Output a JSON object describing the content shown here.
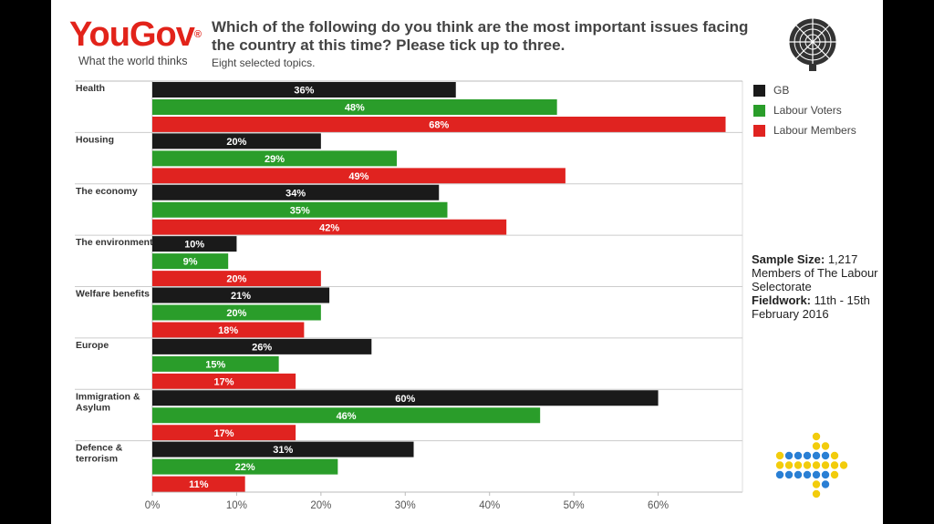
{
  "brand": {
    "logo_you": "You",
    "logo_gov": "Gov",
    "logo_reg": "®",
    "tagline": "What the world thinks"
  },
  "header": {
    "title": "Which of the following do you think are the most important issues facing the country at this time? Please tick up to three.",
    "subtitle": "Eight selected topics."
  },
  "legend": {
    "items": [
      {
        "label": "GB",
        "color": "#1a1a1a"
      },
      {
        "label": "Labour Voters",
        "color": "#2a9d2a"
      },
      {
        "label": "Labour Members",
        "color": "#e02320"
      }
    ]
  },
  "info": {
    "sample_label": "Sample Size:",
    "sample_value": "1,217 Members of The Labour Selectorate",
    "fieldwork_label": "Fieldwork:",
    "fieldwork_value": "11th - 15th February 2016"
  },
  "chart_data": {
    "type": "bar",
    "orientation": "horizontal",
    "categories": [
      "Health",
      "Housing",
      "The economy",
      "The environment",
      "Welfare benefits",
      "Europe",
      "Immigration & Asylum",
      "Defence & terrorism"
    ],
    "series": [
      {
        "name": "GB",
        "color": "#1a1a1a",
        "values": [
          36,
          20,
          34,
          10,
          21,
          26,
          60,
          31
        ]
      },
      {
        "name": "Labour Voters",
        "color": "#2a9d2a",
        "values": [
          48,
          29,
          35,
          9,
          20,
          15,
          46,
          22
        ]
      },
      {
        "name": "Labour Members",
        "color": "#e02320",
        "values": [
          68,
          49,
          42,
          20,
          18,
          17,
          17,
          11
        ]
      }
    ],
    "xlim": [
      0,
      70
    ],
    "xticks": [
      0,
      10,
      20,
      30,
      40,
      50,
      60
    ],
    "xtick_labels": [
      "0%",
      "10%",
      "20%",
      "30%",
      "40%",
      "50%",
      "60%"
    ],
    "value_suffix": "%",
    "legend_position": "right",
    "grid": false
  }
}
